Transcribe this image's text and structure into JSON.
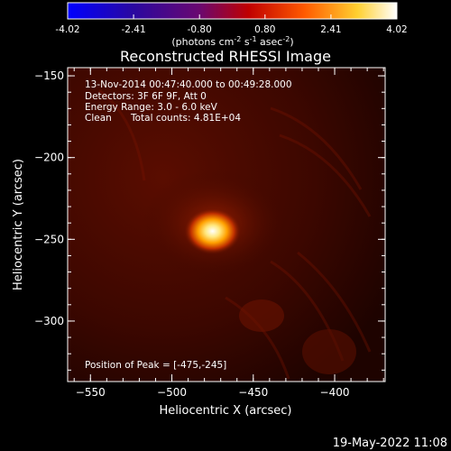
{
  "colorbar": {
    "ticks": [
      "-4.02",
      "-2.41",
      "-0.80",
      "0.80",
      "2.41",
      "4.02"
    ],
    "tick_values": [
      -4.02,
      -2.41,
      -0.8,
      0.8,
      2.41,
      4.02
    ],
    "range": [
      -4.02,
      4.02
    ],
    "units_prefix": "(photons cm",
    "units_exp1": "-2",
    "units_mid": " s",
    "units_exp2": "-1",
    "units_mid2": " asec",
    "units_exp3": "-2",
    "units_suffix": ")",
    "colors": [
      "#0000ff",
      "#3a0a8a",
      "#7a0a6a",
      "#c00000",
      "#ff6000",
      "#ffd020",
      "#ffffff"
    ]
  },
  "annotations": {
    "line1": "13-Nov-2014 00:47:40.000 to 00:49:28.000",
    "line2": "Detectors: 3F 6F 9F, Att 0",
    "line3": "Energy Range: 3.0 - 6.0 keV",
    "line4_a": "Clean",
    "line4_b": "Total counts: 4.81E+04",
    "peak": "Position of Peak = [-475,-245]"
  },
  "footer": {
    "timestamp": "19-May-2022 11:08"
  },
  "chart_data": {
    "type": "heatmap",
    "title": "Reconstructed RHESSI Image",
    "xlabel": "Heliocentric X (arcsec)",
    "ylabel": "Heliocentric Y (arcsec)",
    "xlim": [
      -564,
      -369
    ],
    "ylim": [
      -337,
      -145
    ],
    "x_ticks": [
      -550,
      -500,
      -450,
      -400
    ],
    "y_ticks": [
      -150,
      -200,
      -250,
      -300
    ],
    "x_tick_labels": [
      "−550",
      "−500",
      "−450",
      "−400"
    ],
    "y_tick_labels": [
      "−150",
      "−200",
      "−250",
      "−300"
    ],
    "peak": {
      "x": -475,
      "y": -245
    },
    "grid": false
  }
}
